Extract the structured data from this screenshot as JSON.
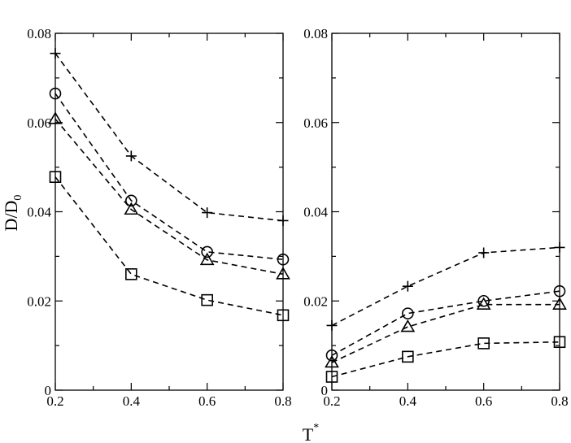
{
  "chart_data": {
    "type": "line",
    "xlabel": "T",
    "xlabel_superscript": "*",
    "ylabel": "D/D",
    "ylabel_subscript": "0",
    "panels": [
      {
        "id": "left",
        "x": [
          0.2,
          0.4,
          0.6,
          0.8
        ],
        "xlim": [
          0.2,
          0.8
        ],
        "ylim": [
          0,
          0.08
        ],
        "xticks": [
          "0.2",
          "0.4",
          "0.6",
          "0.8"
        ],
        "yticks": [
          "0",
          "0.02",
          "0.04",
          "0.06",
          "0.08"
        ],
        "grid": false,
        "series": [
          {
            "marker": "plus",
            "values": [
              0.0755,
              0.0525,
              0.0398,
              0.038
            ]
          },
          {
            "marker": "circle",
            "values": [
              0.0665,
              0.0425,
              0.031,
              0.0293
            ]
          },
          {
            "marker": "triangle",
            "values": [
              0.0608,
              0.0405,
              0.0292,
              0.026
            ]
          },
          {
            "marker": "square",
            "values": [
              0.0478,
              0.026,
              0.0202,
              0.0168
            ]
          }
        ]
      },
      {
        "id": "right",
        "x": [
          0.2,
          0.4,
          0.6,
          0.8
        ],
        "xlim": [
          0.2,
          0.8
        ],
        "ylim": [
          0,
          0.08
        ],
        "xticks": [
          "0.2",
          "0.4",
          "0.6",
          "0.8"
        ],
        "yticks": [
          "0",
          "0.02",
          "0.04",
          "0.06",
          "0.08"
        ],
        "grid": false,
        "series": [
          {
            "marker": "plus",
            "values": [
              0.0145,
              0.0233,
              0.0308,
              0.032
            ]
          },
          {
            "marker": "circle",
            "values": [
              0.0078,
              0.0172,
              0.02,
              0.0222
            ]
          },
          {
            "marker": "triangle",
            "values": [
              0.0062,
              0.0142,
              0.0192,
              0.0192
            ]
          },
          {
            "marker": "square",
            "values": [
              0.003,
              0.0075,
              0.0105,
              0.0108
            ]
          }
        ]
      }
    ]
  }
}
